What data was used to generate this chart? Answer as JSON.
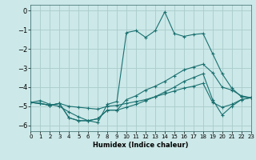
{
  "xlabel": "Humidex (Indice chaleur)",
  "background_color": "#cce8e8",
  "grid_color": "#aacccc",
  "line_color": "#1a7070",
  "xlim": [
    0,
    23
  ],
  "ylim": [
    -6.3,
    0.3
  ],
  "yticks": [
    0,
    -1,
    -2,
    -3,
    -4,
    -5,
    -6
  ],
  "xticks": [
    0,
    1,
    2,
    3,
    4,
    5,
    6,
    7,
    8,
    9,
    10,
    11,
    12,
    13,
    14,
    15,
    16,
    17,
    18,
    19,
    20,
    21,
    22,
    23
  ],
  "line1_x": [
    0,
    1,
    2,
    3,
    4,
    5,
    6,
    7,
    8,
    9,
    10,
    11,
    12,
    13,
    14,
    15,
    16,
    17,
    18,
    19,
    20,
    21,
    22,
    23
  ],
  "line1_y": [
    -4.8,
    -4.7,
    -4.9,
    -5.0,
    -5.3,
    -5.55,
    -5.75,
    -5.85,
    -4.9,
    -4.75,
    -1.15,
    -1.05,
    -1.4,
    -1.05,
    -0.07,
    -1.2,
    -1.35,
    -1.25,
    -1.2,
    -2.25,
    -3.3,
    -4.05,
    -4.5,
    -4.55
  ],
  "line2_x": [
    0,
    1,
    2,
    3,
    4,
    5,
    6,
    7,
    8,
    9,
    10,
    11,
    12,
    13,
    14,
    15,
    16,
    17,
    18,
    19,
    20,
    21,
    22,
    23
  ],
  "line2_y": [
    -4.8,
    -4.85,
    -4.95,
    -4.85,
    -5.0,
    -5.05,
    -5.1,
    -5.15,
    -5.0,
    -4.95,
    -4.85,
    -4.75,
    -4.65,
    -4.5,
    -4.35,
    -4.2,
    -4.05,
    -3.95,
    -3.8,
    -4.8,
    -5.05,
    -4.9,
    -4.65,
    -4.55
  ],
  "line3_x": [
    0,
    1,
    2,
    3,
    4,
    5,
    6,
    7,
    8,
    9,
    10,
    11,
    12,
    13,
    14,
    15,
    16,
    17,
    18,
    19,
    20,
    21,
    22,
    23
  ],
  "line3_y": [
    -4.8,
    -4.85,
    -4.95,
    -4.85,
    -5.6,
    -5.75,
    -5.75,
    -5.65,
    -5.2,
    -5.2,
    -4.65,
    -4.45,
    -4.15,
    -3.95,
    -3.7,
    -3.4,
    -3.1,
    -2.95,
    -2.8,
    -3.25,
    -4.0,
    -4.15,
    -4.45,
    -4.55
  ],
  "line4_x": [
    0,
    1,
    2,
    3,
    4,
    5,
    6,
    7,
    8,
    9,
    10,
    11,
    12,
    13,
    14,
    15,
    16,
    17,
    18,
    19,
    20,
    21,
    22,
    23
  ],
  "line4_y": [
    -4.8,
    -4.85,
    -4.95,
    -4.85,
    -5.6,
    -5.75,
    -5.75,
    -5.65,
    -5.2,
    -5.2,
    -5.05,
    -4.9,
    -4.7,
    -4.5,
    -4.25,
    -4.0,
    -3.7,
    -3.5,
    -3.3,
    -4.65,
    -5.45,
    -5.0,
    -4.65,
    -4.55
  ]
}
